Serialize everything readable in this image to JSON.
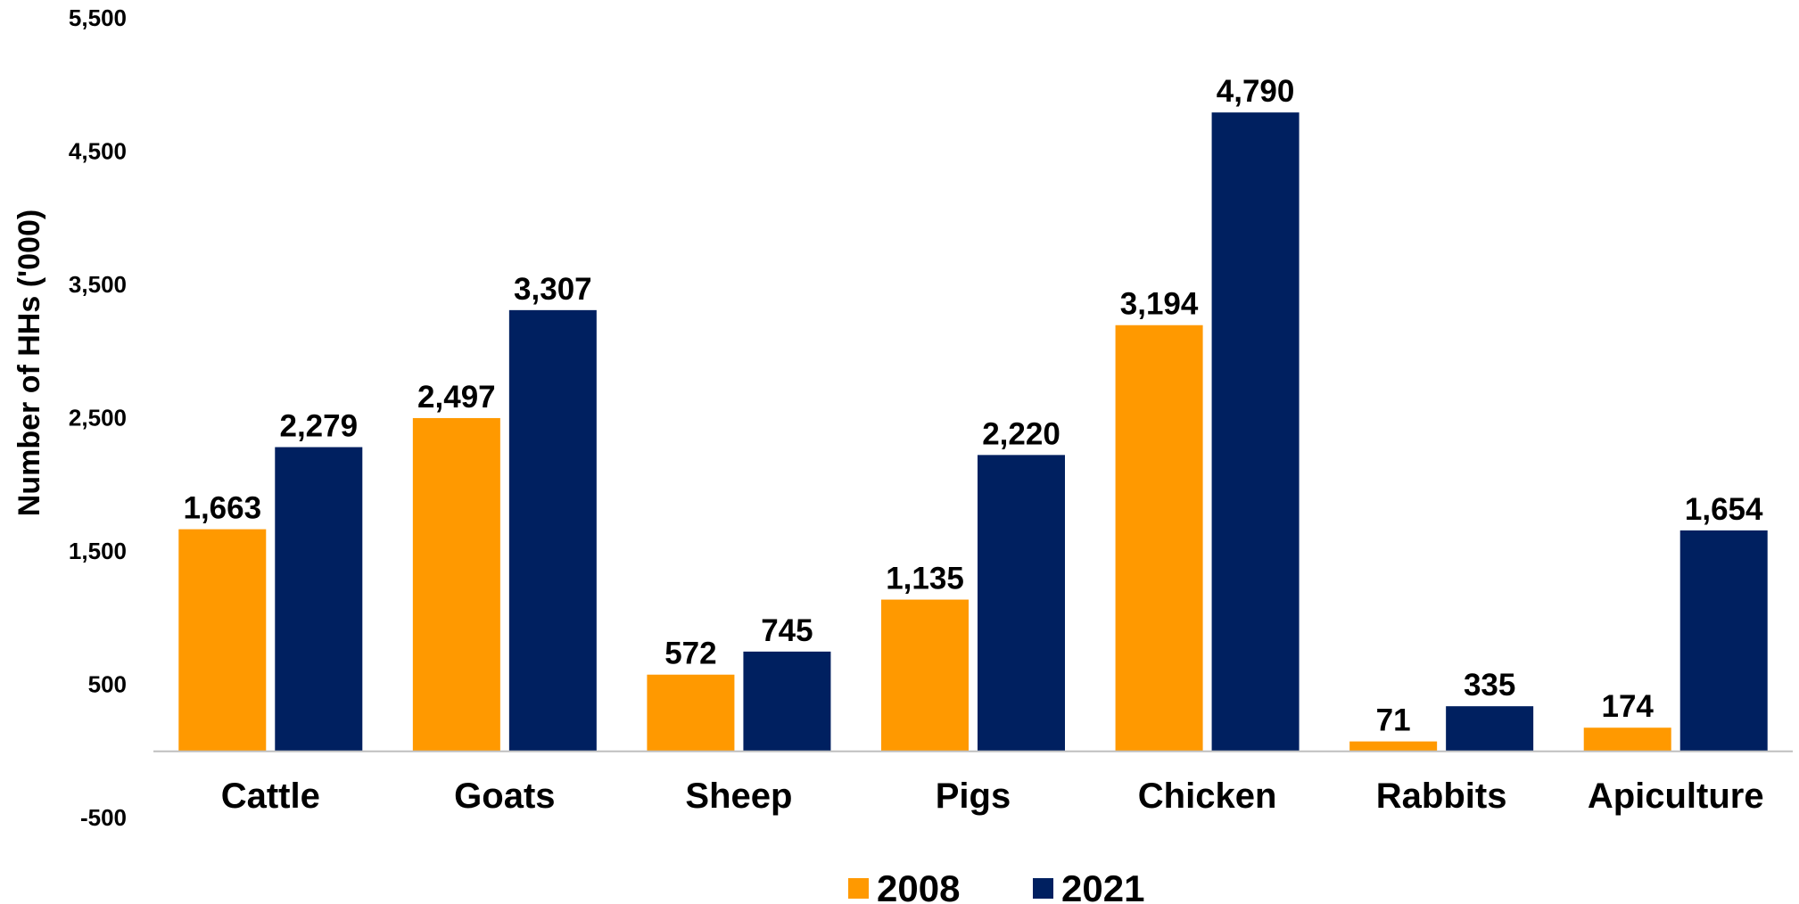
{
  "chart_data": {
    "type": "bar",
    "ylabel": "Number of HHs ('000)",
    "ylim": [
      -500,
      5500
    ],
    "yticks": [
      "5,500",
      "4,500",
      "3,500",
      "2,500",
      "1,500",
      "500",
      "-500"
    ],
    "yticks_values": [
      5500,
      4500,
      3500,
      2500,
      1500,
      500,
      -500
    ],
    "grid": false,
    "legend_position": "bottom",
    "categories": [
      "Cattle",
      "Goats",
      "Sheep",
      "Pigs",
      "Chicken",
      "Rabbits",
      "Apiculture"
    ],
    "series": [
      {
        "name": "2008",
        "color": "#FF9900",
        "values": [
          1663,
          2497,
          572,
          1135,
          3194,
          71,
          174
        ],
        "labels": [
          "1,663",
          "2,497",
          "572",
          "1,135",
          "3,194",
          "71",
          "174"
        ]
      },
      {
        "name": "2021",
        "color": "#002060",
        "values": [
          2279,
          3307,
          745,
          2220,
          4790,
          335,
          1654
        ],
        "labels": [
          "2,279",
          "3,307",
          "745",
          "2,220",
          "4,790",
          "335",
          "1,654"
        ]
      }
    ],
    "axis_color": "#BFBFBF"
  }
}
